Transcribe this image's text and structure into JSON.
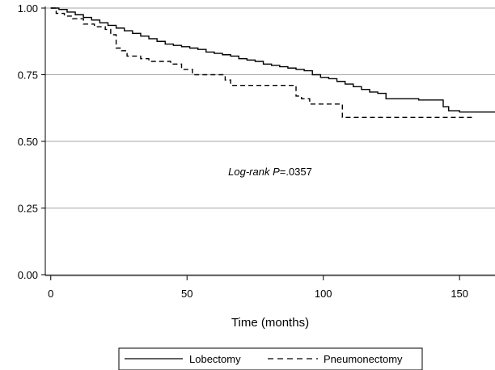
{
  "chart_data": {
    "type": "line",
    "title": "",
    "xlabel": "Time (months)",
    "ylabel": "",
    "xlim": [
      -2,
      163
    ],
    "ylim": [
      0,
      1.0
    ],
    "xticks": [
      0,
      50,
      100,
      150
    ],
    "xtick_labels": [
      "0",
      "50",
      "100",
      "150"
    ],
    "yticks": [
      0.0,
      0.25,
      0.5,
      0.75,
      1.0
    ],
    "ytick_labels": [
      "0.00",
      "0.25",
      "0.50",
      "0.75",
      "1.00"
    ],
    "grid": "horizontal",
    "legend_position": "bottom",
    "annotation": {
      "italic_part": "Log-rank ",
      "p_label": "P",
      "p_value": "=.0357",
      "x": 100,
      "y": 0.47
    },
    "series": [
      {
        "name": "Lobectomy",
        "style": "solid",
        "x": [
          0,
          3,
          6,
          9,
          12,
          15,
          18,
          21,
          24,
          27,
          30,
          33,
          36,
          39,
          42,
          45,
          48,
          51,
          54,
          57,
          60,
          63,
          66,
          69,
          72,
          75,
          78,
          81,
          84,
          87,
          90,
          93,
          96,
          99,
          102,
          105,
          108,
          111,
          114,
          117,
          120,
          123,
          126,
          129,
          132,
          135,
          138,
          141,
          144,
          146,
          150,
          155,
          163
        ],
        "y": [
          1.0,
          0.995,
          0.985,
          0.975,
          0.965,
          0.955,
          0.945,
          0.935,
          0.925,
          0.915,
          0.905,
          0.895,
          0.885,
          0.875,
          0.865,
          0.86,
          0.855,
          0.85,
          0.845,
          0.835,
          0.83,
          0.825,
          0.82,
          0.81,
          0.805,
          0.8,
          0.79,
          0.785,
          0.78,
          0.775,
          0.77,
          0.765,
          0.75,
          0.74,
          0.735,
          0.725,
          0.715,
          0.705,
          0.695,
          0.685,
          0.68,
          0.66,
          0.66,
          0.66,
          0.66,
          0.655,
          0.655,
          0.655,
          0.63,
          0.615,
          0.61,
          0.61,
          0.61
        ]
      },
      {
        "name": "Pneumonectomy",
        "style": "dashed",
        "x": [
          0,
          2,
          5,
          8,
          12,
          16,
          20,
          22,
          24,
          26,
          28,
          30,
          33,
          36,
          40,
          44,
          48,
          52,
          56,
          60,
          64,
          66,
          72,
          80,
          88,
          90,
          92,
          95,
          100,
          104,
          107,
          110,
          120,
          130,
          140,
          150,
          155
        ],
        "y": [
          1.0,
          0.98,
          0.97,
          0.96,
          0.94,
          0.93,
          0.92,
          0.9,
          0.85,
          0.84,
          0.82,
          0.82,
          0.81,
          0.8,
          0.8,
          0.79,
          0.77,
          0.75,
          0.75,
          0.75,
          0.73,
          0.71,
          0.71,
          0.71,
          0.71,
          0.67,
          0.66,
          0.64,
          0.64,
          0.64,
          0.59,
          0.59,
          0.59,
          0.59,
          0.59,
          0.59,
          0.59
        ]
      }
    ]
  }
}
